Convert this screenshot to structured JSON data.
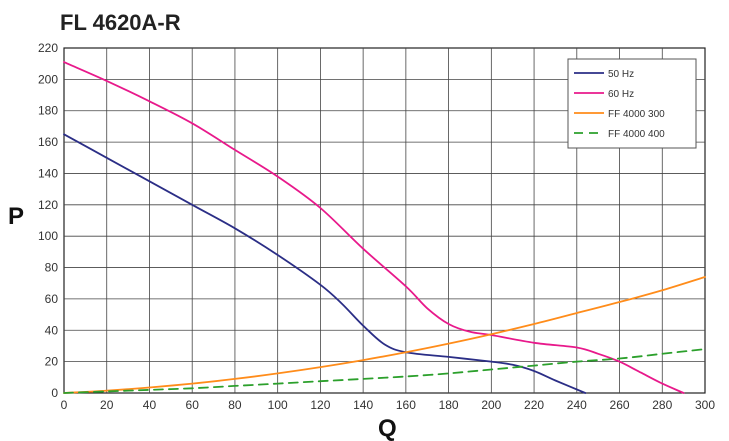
{
  "chart_data": {
    "type": "line",
    "title": "FL 4620A-R",
    "xlabel": "Q",
    "ylabel": "P",
    "xlim": [
      0,
      300
    ],
    "ylim": [
      0,
      220
    ],
    "xticks": [
      0,
      20,
      40,
      60,
      80,
      100,
      120,
      140,
      160,
      180,
      200,
      220,
      240,
      260,
      280,
      300
    ],
    "yticks": [
      0,
      20,
      40,
      60,
      80,
      100,
      120,
      140,
      160,
      180,
      200,
      220
    ],
    "grid": true,
    "legend_position": "top-right",
    "series": [
      {
        "name": "50 Hz",
        "color": "#2b2e86",
        "dash": "solid",
        "x": [
          0,
          20,
          40,
          60,
          80,
          100,
          120,
          130,
          140,
          150,
          160,
          180,
          200,
          210,
          220,
          230,
          244
        ],
        "y": [
          165,
          150,
          135,
          120,
          105,
          88,
          69,
          57,
          43,
          31,
          26,
          23,
          20,
          18,
          14,
          8,
          0
        ]
      },
      {
        "name": "60 Hz",
        "color": "#e8198b",
        "dash": "solid",
        "x": [
          0,
          20,
          40,
          60,
          80,
          100,
          120,
          140,
          160,
          170,
          180,
          190,
          200,
          220,
          240,
          250,
          260,
          270,
          280,
          290
        ],
        "y": [
          211,
          199,
          186,
          172,
          155,
          138,
          118,
          92,
          68,
          54,
          44,
          39,
          37,
          32,
          29,
          25,
          20,
          13,
          6,
          0
        ]
      },
      {
        "name": "FF 4000 300",
        "color": "#ff8c1a",
        "dash": "solid",
        "x": [
          0,
          20,
          40,
          60,
          80,
          100,
          120,
          140,
          160,
          180,
          200,
          220,
          240,
          260,
          280,
          300
        ],
        "y": [
          0,
          1.5,
          3.5,
          6,
          9,
          12.5,
          16.5,
          21,
          26,
          31.5,
          37.5,
          44,
          51,
          58,
          65.5,
          74
        ]
      },
      {
        "name": "FF 4000 400",
        "color": "#2ca02c",
        "dash": "dashed",
        "x": [
          0,
          20,
          40,
          60,
          80,
          100,
          120,
          140,
          160,
          180,
          200,
          220,
          240,
          260,
          280,
          300
        ],
        "y": [
          0,
          1,
          2,
          3,
          4.5,
          6,
          7.5,
          9,
          10.5,
          12.5,
          15,
          17.5,
          20,
          22,
          25,
          28
        ]
      }
    ]
  }
}
